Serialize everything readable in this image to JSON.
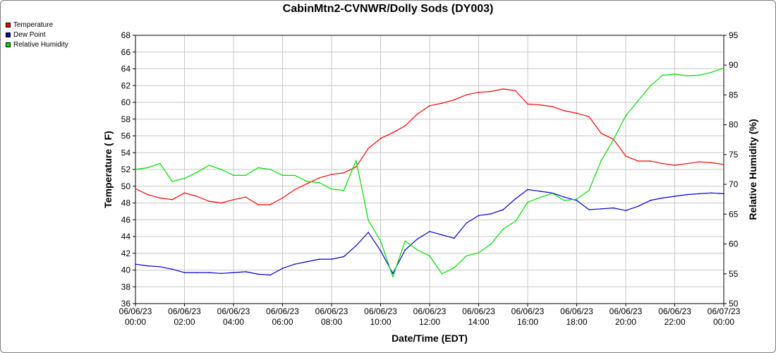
{
  "chart_data": {
    "type": "line",
    "title": "CabinMtn2-CVNWR/Dolly Sods (DY003)",
    "xlabel": "Date/Time (EDT)",
    "ylabel": "Temperature ( F)",
    "y2label": "Relative Humidity (%)",
    "ylim": [
      36,
      68
    ],
    "y2lim": [
      50,
      95
    ],
    "xlim_hours": [
      0,
      24
    ],
    "grid": true,
    "legend_position": "top-left",
    "x_ticks": [
      {
        "date": "06/06/23",
        "time": "00:00"
      },
      {
        "date": "06/06/23",
        "time": "02:00"
      },
      {
        "date": "06/06/23",
        "time": "04:00"
      },
      {
        "date": "06/06/23",
        "time": "06:00"
      },
      {
        "date": "06/06/23",
        "time": "08:00"
      },
      {
        "date": "06/06/23",
        "time": "10:00"
      },
      {
        "date": "06/06/23",
        "time": "12:00"
      },
      {
        "date": "06/06/23",
        "time": "14:00"
      },
      {
        "date": "06/06/23",
        "time": "16:00"
      },
      {
        "date": "06/06/23",
        "time": "18:00"
      },
      {
        "date": "06/06/23",
        "time": "20:00"
      },
      {
        "date": "06/06/23",
        "time": "22:00"
      },
      {
        "date": "06/07/23",
        "time": "00:00"
      }
    ],
    "y_ticks": [
      36,
      38,
      40,
      42,
      44,
      46,
      48,
      50,
      52,
      54,
      56,
      58,
      60,
      62,
      64,
      66,
      68
    ],
    "y2_ticks": [
      50,
      55,
      60,
      65,
      70,
      75,
      80,
      85,
      90,
      95
    ],
    "series": [
      {
        "name": "Temperature",
        "axis": "left",
        "color": "#ff0000",
        "x": [
          0,
          0.5,
          1,
          1.5,
          2,
          2.5,
          3,
          3.5,
          4,
          4.5,
          5,
          5.5,
          6,
          6.5,
          7,
          7.5,
          8,
          8.5,
          9,
          9.5,
          10,
          10.5,
          11,
          11.5,
          12,
          12.5,
          13,
          13.5,
          14,
          14.5,
          15,
          15.5,
          16,
          16.5,
          17,
          17.5,
          18,
          18.5,
          19,
          19.5,
          20,
          20.5,
          21,
          21.5,
          22,
          22.5,
          23,
          23.5,
          24
        ],
        "values": [
          49.7,
          49,
          48.6,
          48.4,
          49.2,
          48.8,
          48.2,
          48,
          48.4,
          48.7,
          47.8,
          47.8,
          48.6,
          49.6,
          50.3,
          51,
          51.4,
          51.6,
          52.3,
          54.5,
          55.7,
          56.4,
          57.2,
          58.6,
          59.6,
          59.9,
          60.3,
          60.9,
          61.2,
          61.3,
          61.6,
          61.4,
          59.8,
          59.7,
          59.5,
          59,
          58.7,
          58.3,
          56.3,
          55.6,
          53.6,
          53,
          53,
          52.7,
          52.5,
          52.7,
          52.9,
          52.8,
          52.6
        ]
      },
      {
        "name": "Dew Point",
        "axis": "left",
        "color": "#0000cc",
        "x": [
          0,
          0.5,
          1,
          1.5,
          2,
          2.5,
          3,
          3.5,
          4,
          4.5,
          5,
          5.5,
          6,
          6.5,
          7,
          7.5,
          8,
          8.5,
          9,
          9.5,
          10,
          10.5,
          11,
          11.5,
          12,
          12.5,
          13,
          13.5,
          14,
          14.5,
          15,
          15.5,
          16,
          16.5,
          17,
          17.5,
          18,
          18.5,
          19,
          19.5,
          20,
          20.5,
          21,
          21.5,
          22,
          22.5,
          23,
          23.5,
          24
        ],
        "values": [
          40.7,
          40.5,
          40.4,
          40.1,
          39.7,
          39.7,
          39.7,
          39.6,
          39.7,
          39.8,
          39.5,
          39.4,
          40.2,
          40.7,
          41,
          41.3,
          41.3,
          41.6,
          42.9,
          44.5,
          42.3,
          39.6,
          42.4,
          43.7,
          44.6,
          44.2,
          43.8,
          45.6,
          46.5,
          46.7,
          47.2,
          48.5,
          49.6,
          49.4,
          49.2,
          48.7,
          48.3,
          47.2,
          47.3,
          47.4,
          47.1,
          47.6,
          48.3,
          48.6,
          48.8,
          49,
          49.1,
          49.2,
          49.1
        ]
      },
      {
        "name": "Relative Humidity",
        "axis": "right",
        "color": "#00dd00",
        "x": [
          0,
          0.5,
          1,
          1.5,
          2,
          2.5,
          3,
          3.5,
          4,
          4.5,
          5,
          5.5,
          6,
          6.5,
          7,
          7.5,
          8,
          8.5,
          9,
          9.5,
          10,
          10.5,
          11,
          11.5,
          12,
          12.5,
          13,
          13.5,
          14,
          14.5,
          15,
          15.5,
          16,
          16.5,
          17,
          17.5,
          18,
          18.5,
          19,
          19.5,
          20,
          20.5,
          21,
          21.5,
          22,
          22.5,
          23,
          23.5,
          24
        ],
        "values": [
          72.5,
          72.8,
          73.5,
          70.5,
          71,
          72,
          73.2,
          72.5,
          71.5,
          71.5,
          72.8,
          72.5,
          71.5,
          71.5,
          70.5,
          70.3,
          69.2,
          69,
          74,
          64,
          60.5,
          54.5,
          60.5,
          59,
          58,
          55,
          56,
          58,
          58.5,
          60,
          62.5,
          63.8,
          67,
          67.8,
          68.5,
          67.3,
          67.5,
          69,
          74,
          77.5,
          81.5,
          84,
          86.5,
          88.3,
          88.5,
          88.2,
          88.3,
          88.8,
          89.5
        ]
      }
    ]
  }
}
